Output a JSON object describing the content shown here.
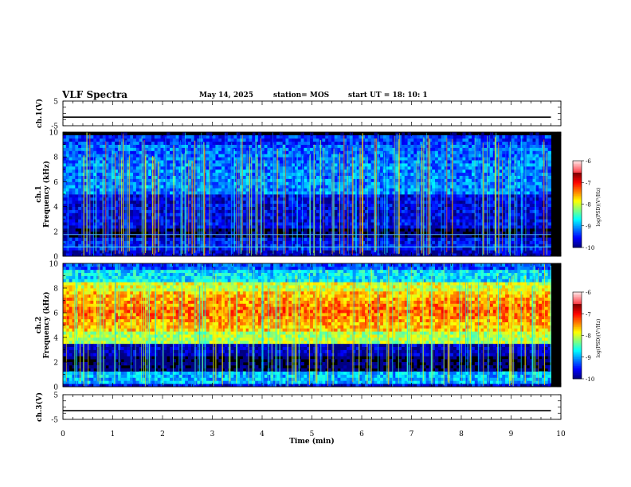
{
  "header": {
    "title": "VLF Spectra",
    "date": "May 14, 2025",
    "station": "station= MOS",
    "start": "start  UT  =   18: 10: 1"
  },
  "chart_data": [
    {
      "type": "line",
      "name": "ch1-voltage",
      "ylabel": "ch.1(V)",
      "ylim": [
        -5,
        5
      ],
      "yticks": [
        5,
        -5
      ],
      "x": [
        0,
        9.8
      ],
      "values": [
        -1.5,
        -1.5
      ]
    },
    {
      "type": "heatmap",
      "name": "ch1-spectrogram",
      "ylabel": "ch.1 Frequency (kHz)",
      "ylim": [
        0,
        10
      ],
      "yticks": [
        0,
        2,
        4,
        6,
        8,
        10
      ],
      "xlim": [
        0,
        10
      ],
      "data_xmax": 9.8,
      "colorbar": {
        "label": "log(PSD)(V²/Hz)",
        "range": [
          -10,
          -6
        ],
        "ticks": [
          -6,
          -7,
          -8,
          -9,
          -10
        ]
      }
    },
    {
      "type": "heatmap",
      "name": "ch2-spectrogram",
      "ylabel": "ch.2 Frequency (kHz)",
      "ylim": [
        0,
        10
      ],
      "yticks": [
        0,
        2,
        4,
        6,
        8,
        10
      ],
      "xlim": [
        0,
        10
      ],
      "data_xmax": 9.8,
      "colorbar": {
        "label": "log(PSD)(V²/Hz)",
        "range": [
          -10,
          -6
        ],
        "ticks": [
          -6,
          -7,
          -8,
          -9,
          -10
        ]
      }
    },
    {
      "type": "line",
      "name": "ch3-voltage",
      "ylabel": "ch.3(V)",
      "ylim": [
        -5,
        5
      ],
      "yticks": [
        5,
        -5
      ],
      "x": [
        0,
        9.8
      ],
      "values": [
        -1.5,
        -1.5
      ]
    }
  ],
  "xaxis": {
    "label": "Time  (min)",
    "ticks": [
      0,
      1,
      2,
      3,
      4,
      5,
      6,
      7,
      8,
      9,
      10
    ],
    "range": [
      0,
      10
    ]
  }
}
